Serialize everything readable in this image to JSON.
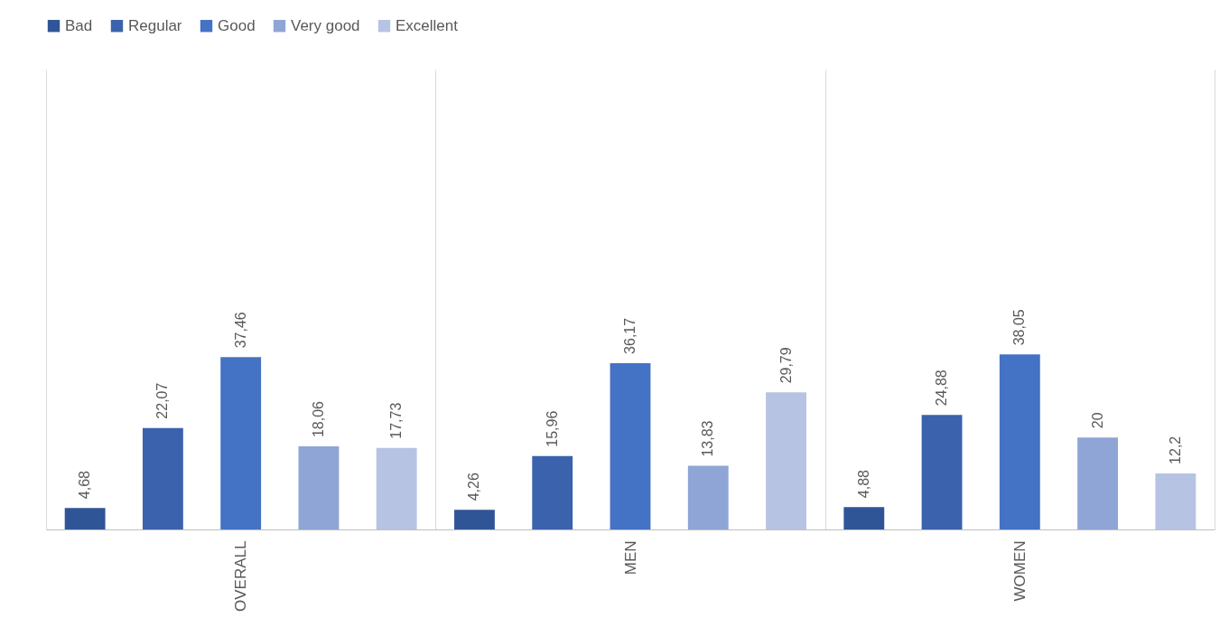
{
  "chart_data": {
    "type": "bar",
    "categories": [
      "OVERALL",
      "MEN",
      "WOMEN"
    ],
    "series": [
      {
        "name": "Bad",
        "color": "#2f5597",
        "values": [
          4.68,
          4.26,
          4.88
        ],
        "value_labels": [
          "4,68",
          "4,26",
          "4,88"
        ]
      },
      {
        "name": "Regular",
        "color": "#3a62ad",
        "values": [
          22.07,
          15.96,
          24.88
        ],
        "value_labels": [
          "22,07",
          "15,96",
          "24,88"
        ]
      },
      {
        "name": "Good",
        "color": "#4472c4",
        "values": [
          37.46,
          36.17,
          38.05
        ],
        "value_labels": [
          "37,46",
          "36,17",
          "38,05"
        ]
      },
      {
        "name": "Very good",
        "color": "#8fa5d6",
        "values": [
          18.06,
          13.83,
          20
        ],
        "value_labels": [
          "18,06",
          "13,83",
          "20"
        ]
      },
      {
        "name": "Excellent",
        "color": "#b7c3e3",
        "values": [
          17.73,
          29.79,
          12.2
        ],
        "value_labels": [
          "17,73",
          "29,79",
          "12,2"
        ]
      }
    ],
    "ylim": [
      0,
      100
    ],
    "grid": "x",
    "legend": "top",
    "tick_labels": "x"
  }
}
